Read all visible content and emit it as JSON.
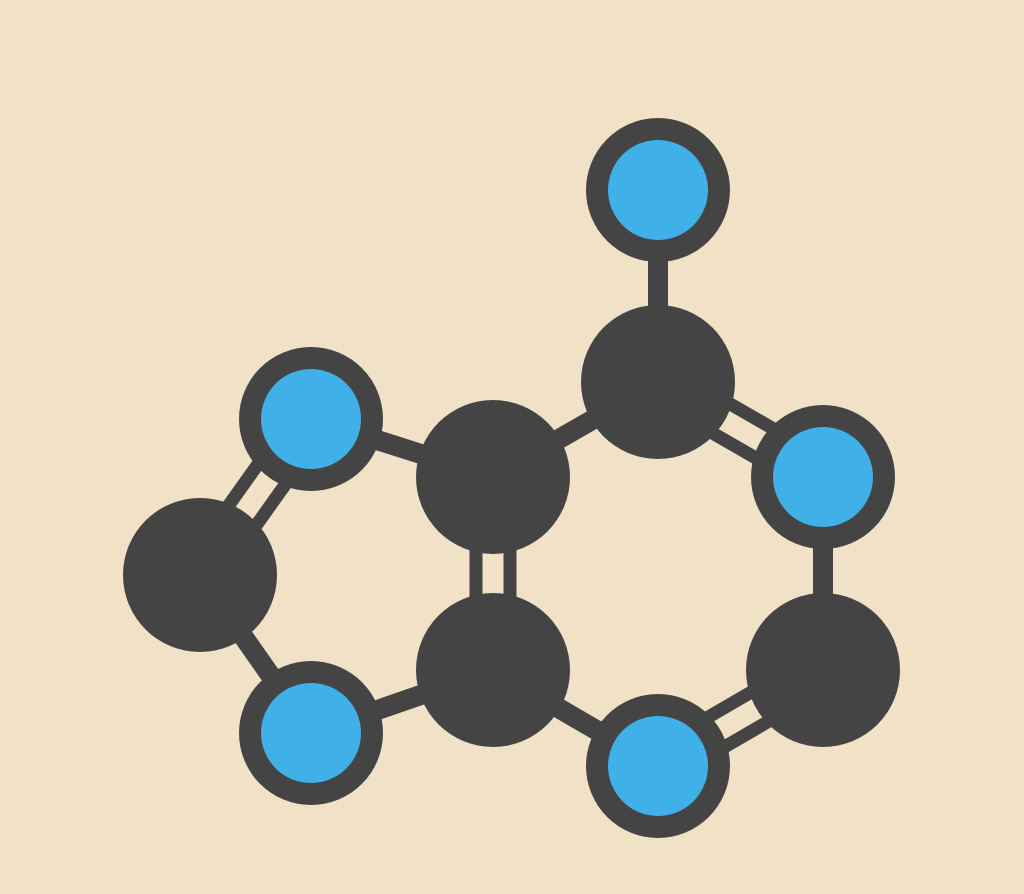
{
  "diagram": {
    "background_color": "#F0E1C7",
    "bond_color": "#444444",
    "carbon_color": "#444444",
    "nitrogen_color": "#40B0E8",
    "atoms": [
      {
        "id": "n-amine",
        "element": "N"
      },
      {
        "id": "c6",
        "element": "C"
      },
      {
        "id": "n1",
        "element": "N"
      },
      {
        "id": "c2",
        "element": "C"
      },
      {
        "id": "n3",
        "element": "N"
      },
      {
        "id": "c4",
        "element": "C"
      },
      {
        "id": "c5",
        "element": "C"
      },
      {
        "id": "n7",
        "element": "N"
      },
      {
        "id": "c8",
        "element": "C"
      },
      {
        "id": "n9",
        "element": "N"
      }
    ],
    "bonds": [
      {
        "from": "n-amine",
        "to": "c6",
        "order": 1
      },
      {
        "from": "c6",
        "to": "n1",
        "order": 2
      },
      {
        "from": "n1",
        "to": "c2",
        "order": 1
      },
      {
        "from": "c2",
        "to": "n3",
        "order": 2
      },
      {
        "from": "n3",
        "to": "c4",
        "order": 1
      },
      {
        "from": "c4",
        "to": "c5",
        "order": 2
      },
      {
        "from": "c5",
        "to": "c6",
        "order": 1
      },
      {
        "from": "c5",
        "to": "n7",
        "order": 1
      },
      {
        "from": "n7",
        "to": "c8",
        "order": 2
      },
      {
        "from": "c8",
        "to": "n9",
        "order": 1
      },
      {
        "from": "n9",
        "to": "c4",
        "order": 1
      }
    ]
  }
}
